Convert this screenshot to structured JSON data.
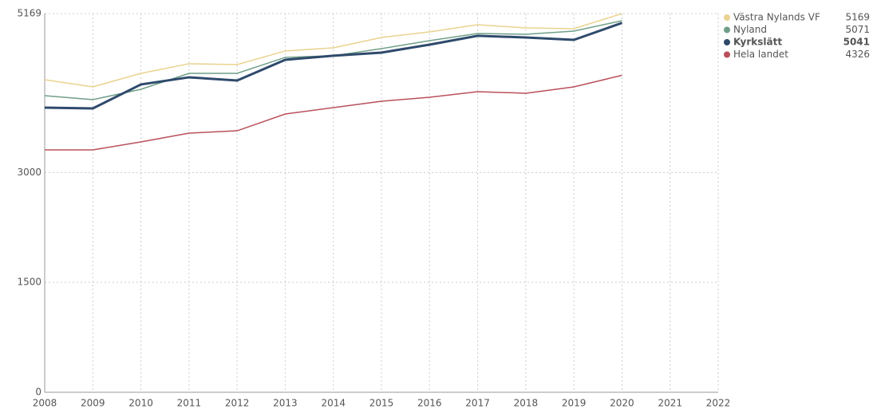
{
  "chart_data": {
    "type": "line",
    "x": [
      2008,
      2009,
      2010,
      2011,
      2012,
      2013,
      2014,
      2015,
      2016,
      2017,
      2018,
      2019,
      2020
    ],
    "xlim": [
      2008,
      2022
    ],
    "xticks": [
      2008,
      2009,
      2010,
      2011,
      2012,
      2013,
      2014,
      2015,
      2016,
      2017,
      2018,
      2019,
      2020,
      2021,
      2022
    ],
    "ylim": [
      0,
      5169
    ],
    "yticks": [
      0,
      1500,
      3000,
      5169
    ],
    "grid": true,
    "legend": "right",
    "series": [
      {
        "name": "Västra Nylands VF",
        "color": "#e9d38e",
        "values": [
          4266,
          4168,
          4353,
          4484,
          4473,
          4658,
          4701,
          4843,
          4919,
          5017,
          4973,
          4962,
          5169
        ]
      },
      {
        "name": "Nyland",
        "color": "#6f9f88",
        "values": [
          4048,
          3994,
          4135,
          4353,
          4353,
          4571,
          4593,
          4690,
          4799,
          4897,
          4886,
          4930,
          5071
        ]
      },
      {
        "name": "Kyrkslätt",
        "color": "#2e4a6c",
        "bold": true,
        "values": [
          3885,
          3874,
          4201,
          4299,
          4255,
          4538,
          4593,
          4636,
          4745,
          4865,
          4843,
          4810,
          5041
        ]
      },
      {
        "name": "Hela landet",
        "color": "#b9505a",
        "values": [
          3308,
          3308,
          3417,
          3537,
          3569,
          3798,
          3885,
          3972,
          4027,
          4103,
          4081,
          4168,
          4326
        ]
      }
    ]
  }
}
